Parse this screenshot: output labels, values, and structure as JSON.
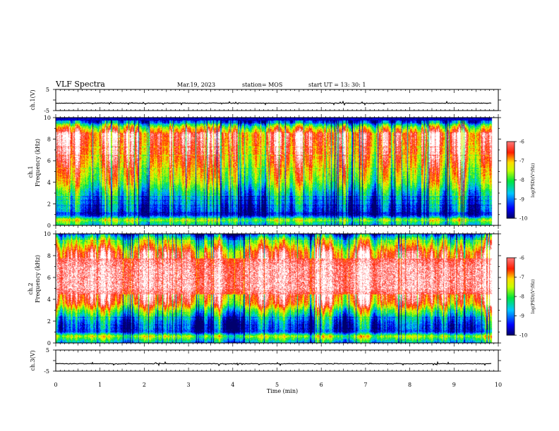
{
  "header": {
    "title": "VLF Spectra",
    "date": "Mar.19, 2023",
    "station": "station= MOS",
    "start": "start  UT =   13: 30: 1"
  },
  "chart_data": [
    {
      "type": "line",
      "panel": "ch1-waveform",
      "ylabel": "ch.1(V)",
      "ylim": [
        -5,
        5
      ],
      "yticks": [
        "5",
        "-5"
      ],
      "xlim": [
        0,
        10
      ],
      "baseline_value": -1.5,
      "series_color": "#000000"
    },
    {
      "type": "heatmap",
      "panel": "ch1-spectrogram",
      "ylabel": "ch.1\nFrequency (kHz)",
      "ylabel_lines": [
        "ch.1",
        "Frequency (kHz)"
      ],
      "ylim": [
        0,
        10
      ],
      "yticks": [
        "0",
        "2",
        "4",
        "6",
        "8",
        "10"
      ],
      "xlim": [
        0,
        9.85
      ],
      "colorbar": {
        "label": "log(PSD)(V²/Hz)",
        "range": [
          -10,
          -6
        ],
        "ticks": [
          "-6",
          "-7",
          "-8",
          "-9",
          "-10"
        ]
      },
      "profile": [
        {
          "f": 0.0,
          "level": 0.35
        },
        {
          "f": 0.5,
          "level": 0.55
        },
        {
          "f": 0.9,
          "level": 0.1
        },
        {
          "f": 2.0,
          "level": 0.22
        },
        {
          "f": 3.0,
          "level": 0.35
        },
        {
          "f": 4.0,
          "level": 0.55
        },
        {
          "f": 5.5,
          "level": 0.7
        },
        {
          "f": 7.0,
          "level": 0.82
        },
        {
          "f": 8.5,
          "level": 0.88
        },
        {
          "f": 9.2,
          "level": 0.55
        },
        {
          "f": 9.7,
          "level": 0.15
        },
        {
          "f": 10.0,
          "level": 0.02
        }
      ]
    },
    {
      "type": "heatmap",
      "panel": "ch2-spectrogram",
      "ylabel": "ch.2\nFrequency (kHz)",
      "ylabel_lines": [
        "ch.2",
        "Frequency (kHz)"
      ],
      "ylim": [
        0,
        10
      ],
      "yticks": [
        "0",
        "2",
        "4",
        "6",
        "8",
        "10"
      ],
      "xlim": [
        0,
        9.85
      ],
      "colorbar": {
        "label": "log(PSD)(V²/Hz)",
        "range": [
          -10,
          -6
        ],
        "ticks": [
          "-6",
          "-7",
          "-8",
          "-9",
          "-10"
        ]
      },
      "profile": [
        {
          "f": 0.0,
          "level": 0.3
        },
        {
          "f": 0.6,
          "level": 0.6
        },
        {
          "f": 1.0,
          "level": 0.15
        },
        {
          "f": 2.0,
          "level": 0.25
        },
        {
          "f": 3.0,
          "level": 0.55
        },
        {
          "f": 3.6,
          "level": 0.8
        },
        {
          "f": 5.0,
          "level": 0.97
        },
        {
          "f": 7.0,
          "level": 0.96
        },
        {
          "f": 8.3,
          "level": 0.86
        },
        {
          "f": 9.0,
          "level": 0.65
        },
        {
          "f": 9.6,
          "level": 0.45
        },
        {
          "f": 10.0,
          "level": 0.2
        }
      ]
    },
    {
      "type": "line",
      "panel": "ch3-waveform",
      "ylabel": "ch.3(V)",
      "ylim": [
        -5,
        5
      ],
      "yticks": [
        "5",
        "-5"
      ],
      "xlim": [
        0,
        10
      ],
      "baseline_value": -1.5,
      "series_color": "#000000"
    }
  ],
  "x_axis": {
    "label": "Time  (min)",
    "ticks": [
      "0",
      "1",
      "2",
      "3",
      "4",
      "5",
      "6",
      "7",
      "8",
      "9",
      "10"
    ],
    "range": [
      0,
      10
    ]
  },
  "colors": {
    "scale": [
      "#000080",
      "#0000ff",
      "#00c8ff",
      "#00ff00",
      "#ffff00",
      "#ff0000",
      "#ffffff"
    ]
  }
}
